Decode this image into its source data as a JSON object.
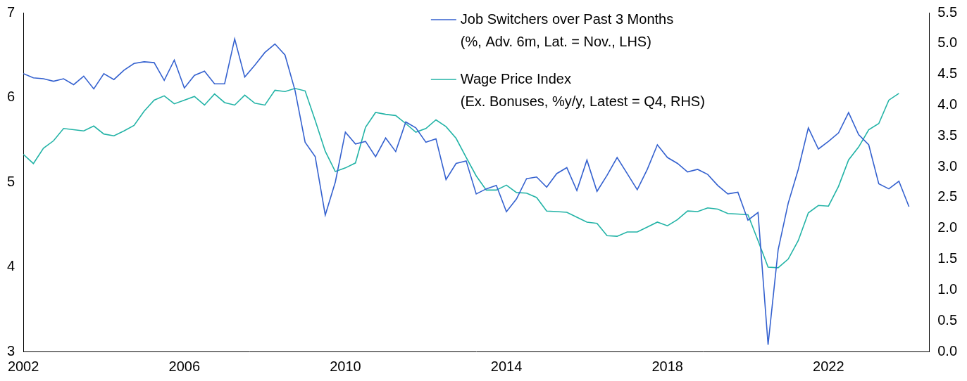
{
  "chart_data": {
    "type": "line",
    "xlim": [
      2002,
      2024.5
    ],
    "xticks": [
      2002,
      2006,
      2010,
      2014,
      2018,
      2022
    ],
    "ylim": [
      3,
      7
    ],
    "yticks": [
      3,
      4,
      5,
      6,
      7
    ],
    "y2lim": [
      0,
      5.5
    ],
    "y2ticks": [
      {
        "value": 0,
        "label": "0.0"
      },
      0.5,
      {
        "value": 1,
        "label": "1.0"
      },
      1.5,
      {
        "value": 2,
        "label": "2.0"
      },
      2.5,
      {
        "value": 3,
        "label": "3.0"
      },
      3.5,
      {
        "value": 4,
        "label": "4.0"
      },
      4.5,
      {
        "value": 5,
        "label": "5.0"
      },
      5.5
    ],
    "grid": false,
    "legend": "top",
    "series": [
      {
        "name": "Job Switchers over Past 3 Months (%, Adv. 6m, Lat. = Nov., LHS)",
        "color": "#3461cf",
        "axis": "y",
        "x": [
          2002,
          2002.25,
          2002.5,
          2002.75,
          2003,
          2003.25,
          2003.5,
          2003.75,
          2004,
          2004.25,
          2004.5,
          2004.75,
          2005,
          2005.25,
          2005.5,
          2005.75,
          2006,
          2006.25,
          2006.5,
          2006.75,
          2007,
          2007.25,
          2007.5,
          2007.75,
          2008,
          2008.25,
          2008.5,
          2008.75,
          2009,
          2009.25,
          2009.5,
          2009.75,
          2010,
          2010.25,
          2010.5,
          2010.75,
          2011,
          2011.25,
          2011.5,
          2011.75,
          2012,
          2012.25,
          2012.5,
          2012.75,
          2013,
          2013.25,
          2013.5,
          2013.75,
          2014,
          2014.25,
          2014.5,
          2014.75,
          2015,
          2015.25,
          2015.5,
          2015.75,
          2016,
          2016.25,
          2016.5,
          2016.75,
          2017,
          2017.25,
          2017.5,
          2017.75,
          2018,
          2018.25,
          2018.5,
          2018.75,
          2019,
          2019.25,
          2019.5,
          2019.75,
          2020,
          2020.25,
          2020.5,
          2020.75,
          2021,
          2021.25,
          2021.5,
          2021.75,
          2022,
          2022.25,
          2022.5,
          2022.75,
          2023,
          2023.25,
          2023.5,
          2023.75,
          2024
        ],
        "values": [
          6.28,
          6.23,
          6.22,
          6.19,
          6.22,
          6.15,
          6.25,
          6.1,
          6.28,
          6.21,
          6.32,
          6.4,
          6.42,
          6.41,
          6.2,
          6.44,
          6.11,
          6.26,
          6.31,
          6.16,
          6.16,
          6.69,
          6.24,
          6.38,
          6.53,
          6.63,
          6.5,
          6.08,
          5.47,
          5.3,
          4.61,
          5.0,
          5.59,
          5.45,
          5.48,
          5.3,
          5.52,
          5.36,
          5.71,
          5.64,
          5.47,
          5.51,
          5.03,
          5.22,
          5.25,
          4.86,
          4.92,
          4.96,
          4.65,
          4.8,
          5.04,
          5.06,
          4.94,
          5.1,
          5.17,
          4.9,
          5.26,
          4.89,
          5.08,
          5.29,
          5.1,
          4.91,
          5.15,
          5.44,
          5.29,
          5.22,
          5.12,
          5.15,
          5.09,
          4.96,
          4.86,
          4.88,
          4.55,
          4.64,
          3.08,
          4.2,
          4.75,
          5.15,
          5.64,
          5.39,
          5.48,
          5.58,
          5.82,
          5.56,
          5.44,
          4.98,
          4.92,
          5.01,
          4.71
        ]
      },
      {
        "name": "Wage Price Index (Ex. Bonuses, %y/y, Latest = Q4, RHS)",
        "color": "#22b3a6",
        "axis": "y2",
        "x": [
          2002,
          2002.25,
          2002.5,
          2002.75,
          2003,
          2003.25,
          2003.5,
          2003.75,
          2004,
          2004.25,
          2004.5,
          2004.75,
          2005,
          2005.25,
          2005.5,
          2005.75,
          2006,
          2006.25,
          2006.5,
          2006.75,
          2007,
          2007.25,
          2007.5,
          2007.75,
          2008,
          2008.25,
          2008.5,
          2008.75,
          2009,
          2009.25,
          2009.5,
          2009.75,
          2010,
          2010.25,
          2010.5,
          2010.75,
          2011,
          2011.25,
          2011.5,
          2011.75,
          2012,
          2012.25,
          2012.5,
          2012.75,
          2013,
          2013.25,
          2013.5,
          2013.75,
          2014,
          2014.25,
          2014.5,
          2014.75,
          2015,
          2015.25,
          2015.5,
          2015.75,
          2016,
          2016.25,
          2016.5,
          2016.75,
          2017,
          2017.25,
          2017.5,
          2017.75,
          2018,
          2018.25,
          2018.5,
          2018.75,
          2019,
          2019.25,
          2019.5,
          2019.75,
          2020,
          2020.25,
          2020.5,
          2020.75,
          2021,
          2021.25,
          2021.5,
          2021.75,
          2022,
          2022.25,
          2022.5,
          2022.75,
          2023,
          2023.25,
          2023.5,
          2023.75
        ],
        "values": [
          3.2,
          3.05,
          3.3,
          3.42,
          3.62,
          3.6,
          3.58,
          3.66,
          3.53,
          3.5,
          3.58,
          3.67,
          3.9,
          4.08,
          4.15,
          4.02,
          4.08,
          4.14,
          4.0,
          4.18,
          4.04,
          4.0,
          4.16,
          4.03,
          4.0,
          4.24,
          4.22,
          4.27,
          4.23,
          3.75,
          3.25,
          2.92,
          2.98,
          3.06,
          3.64,
          3.88,
          3.85,
          3.83,
          3.7,
          3.56,
          3.62,
          3.76,
          3.65,
          3.46,
          3.15,
          2.85,
          2.62,
          2.62,
          2.7,
          2.58,
          2.57,
          2.5,
          2.28,
          2.27,
          2.26,
          2.18,
          2.1,
          2.08,
          1.88,
          1.87,
          1.94,
          1.94,
          2.02,
          2.1,
          2.04,
          2.14,
          2.28,
          2.27,
          2.33,
          2.31,
          2.24,
          2.23,
          2.22,
          1.8,
          1.37,
          1.36,
          1.5,
          1.8,
          2.25,
          2.37,
          2.36,
          2.68,
          3.11,
          3.32,
          3.6,
          3.7,
          4.08,
          4.19
        ]
      }
    ]
  }
}
